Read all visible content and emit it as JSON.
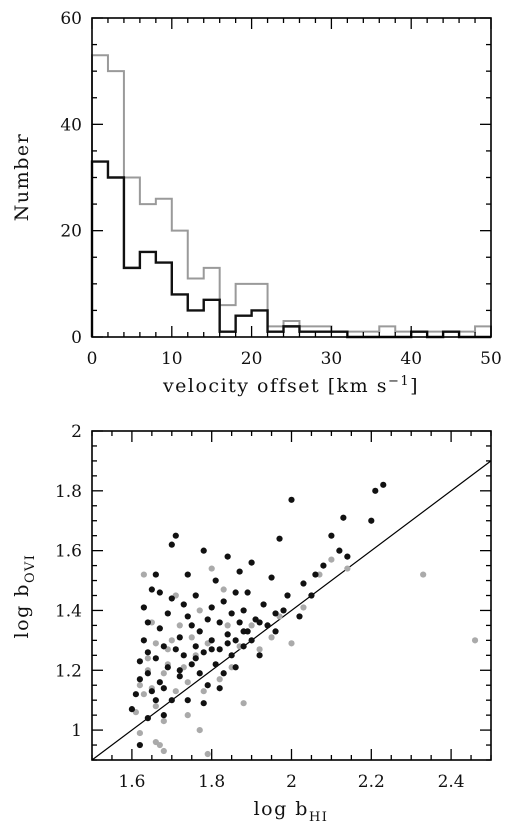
{
  "chart_data": [
    {
      "type": "histogram",
      "xlabel": "velocity offset [km s",
      "xlabel_sup": "−1",
      "xlabel_close": "]",
      "ylabel": "Number",
      "xlim": [
        0,
        50
      ],
      "ylim": [
        0,
        60
      ],
      "xticks": [
        0,
        10,
        20,
        30,
        40,
        50
      ],
      "yticks": [
        0,
        20,
        40,
        60
      ],
      "grid": false,
      "bin_edges": [
        0,
        2,
        4,
        6,
        8,
        10,
        12,
        14,
        16,
        18,
        20,
        22,
        24,
        26,
        28,
        30,
        32,
        34,
        36,
        38,
        40,
        42,
        44,
        46,
        48,
        50
      ],
      "series": [
        {
          "color": "#9a9a9a",
          "counts": [
            53,
            50,
            30,
            25,
            26,
            20,
            11,
            13,
            6,
            10,
            10,
            2,
            3,
            2,
            2,
            1,
            1,
            1,
            2,
            1,
            1,
            1,
            1,
            1,
            2
          ]
        },
        {
          "color": "#111111",
          "counts": [
            33,
            30,
            13,
            16,
            14,
            8,
            5,
            7,
            1,
            4,
            5,
            1,
            2,
            1,
            1,
            1,
            0,
            0,
            0,
            0,
            1,
            0,
            1,
            0,
            0
          ]
        }
      ]
    },
    {
      "type": "scatter",
      "xlabel": "log  b",
      "xlabel_sub": "HI",
      "ylabel": "log  b",
      "ylabel_sub": "OVI",
      "xlim": [
        1.5,
        2.5
      ],
      "ylim": [
        0.9,
        2.0
      ],
      "xticks": [
        1.6,
        1.8,
        2,
        2.2,
        2.4
      ],
      "xtick_labels": [
        "1.6",
        "1.8",
        "2",
        "2.2",
        "2.4"
      ],
      "yticks": [
        1,
        1.2,
        1.4,
        1.6,
        1.8,
        2
      ],
      "ytick_labels": [
        "1",
        "1.2",
        "1.4",
        "1.6",
        "1.8",
        "2"
      ],
      "grid": false,
      "line": {
        "x": [
          1.5,
          2.5
        ],
        "y": [
          0.9,
          1.9
        ]
      },
      "series": [
        {
          "color": "#aaaaaa",
          "points": [
            [
              1.61,
              1.06
            ],
            [
              1.62,
              0.99
            ],
            [
              1.63,
              1.12
            ],
            [
              1.64,
              1.2
            ],
            [
              1.64,
              1.24
            ],
            [
              1.65,
              1.14
            ],
            [
              1.66,
              1.08
            ],
            [
              1.66,
              0.96
            ],
            [
              1.67,
              0.95
            ],
            [
              1.68,
              1.03
            ],
            [
              1.68,
              1.19
            ],
            [
              1.69,
              1.27
            ],
            [
              1.7,
              1.3
            ],
            [
              1.71,
              1.13
            ],
            [
              1.72,
              1.35
            ],
            [
              1.73,
              1.21
            ],
            [
              1.74,
              1.16
            ],
            [
              1.75,
              1.31
            ],
            [
              1.76,
              1.25
            ],
            [
              1.77,
              1.0
            ],
            [
              1.78,
              1.13
            ],
            [
              1.79,
              1.29
            ],
            [
              1.8,
              1.54
            ],
            [
              1.82,
              1.17
            ],
            [
              1.84,
              1.35
            ],
            [
              1.85,
              1.21
            ],
            [
              1.87,
              1.28
            ],
            [
              1.88,
              1.09
            ],
            [
              1.9,
              1.35
            ],
            [
              1.92,
              1.27
            ],
            [
              1.95,
              1.31
            ],
            [
              1.97,
              1.38
            ],
            [
              2.0,
              1.29
            ],
            [
              2.03,
              1.41
            ],
            [
              2.07,
              1.52
            ],
            [
              2.1,
              1.57
            ],
            [
              2.14,
              1.54
            ],
            [
              2.33,
              1.52
            ],
            [
              2.46,
              1.3
            ],
            [
              1.63,
              1.52
            ],
            [
              1.66,
              1.29
            ],
            [
              1.69,
              1.22
            ],
            [
              1.71,
              1.45
            ],
            [
              1.74,
              1.05
            ],
            [
              1.77,
              1.4
            ],
            [
              1.62,
              1.15
            ],
            [
              1.65,
              1.36
            ],
            [
              1.68,
              0.93
            ],
            [
              1.79,
              0.92
            ],
            [
              1.83,
              1.47
            ]
          ]
        },
        {
          "color": "#111111",
          "points": [
            [
              1.6,
              1.07
            ],
            [
              1.61,
              1.12
            ],
            [
              1.62,
              1.17
            ],
            [
              1.62,
              1.23
            ],
            [
              1.63,
              1.3
            ],
            [
              1.63,
              1.41
            ],
            [
              1.64,
              1.19
            ],
            [
              1.64,
              1.26
            ],
            [
              1.65,
              1.13
            ],
            [
              1.65,
              1.47
            ],
            [
              1.66,
              1.24
            ],
            [
              1.66,
              1.52
            ],
            [
              1.67,
              1.16
            ],
            [
              1.67,
              1.34
            ],
            [
              1.68,
              1.05
            ],
            [
              1.68,
              1.28
            ],
            [
              1.69,
              1.39
            ],
            [
              1.69,
              1.21
            ],
            [
              1.7,
              1.62
            ],
            [
              1.7,
              1.44
            ],
            [
              1.71,
              1.27
            ],
            [
              1.71,
              1.65
            ],
            [
              1.72,
              1.31
            ],
            [
              1.72,
              1.18
            ],
            [
              1.73,
              1.42
            ],
            [
              1.73,
              1.25
            ],
            [
              1.74,
              1.52
            ],
            [
              1.74,
              1.1
            ],
            [
              1.75,
              1.35
            ],
            [
              1.75,
              1.22
            ],
            [
              1.76,
              1.28
            ],
            [
              1.76,
              1.45
            ],
            [
              1.77,
              1.19
            ],
            [
              1.77,
              1.33
            ],
            [
              1.78,
              1.6
            ],
            [
              1.78,
              1.26
            ],
            [
              1.79,
              1.37
            ],
            [
              1.79,
              1.15
            ],
            [
              1.8,
              1.3
            ],
            [
              1.8,
              1.41
            ],
            [
              1.81,
              1.22
            ],
            [
              1.81,
              1.5
            ],
            [
              1.82,
              1.27
            ],
            [
              1.82,
              1.36
            ],
            [
              1.83,
              1.19
            ],
            [
              1.83,
              1.43
            ],
            [
              1.84,
              1.32
            ],
            [
              1.84,
              1.58
            ],
            [
              1.85,
              1.25
            ],
            [
              1.85,
              1.39
            ],
            [
              1.86,
              1.3
            ],
            [
              1.86,
              1.21
            ],
            [
              1.87,
              1.36
            ],
            [
              1.87,
              1.53
            ],
            [
              1.88,
              1.28
            ],
            [
              1.88,
              1.4
            ],
            [
              1.89,
              1.33
            ],
            [
              1.89,
              1.46
            ],
            [
              1.9,
              1.3
            ],
            [
              1.9,
              1.56
            ],
            [
              1.91,
              1.37
            ],
            [
              1.92,
              1.25
            ],
            [
              1.93,
              1.42
            ],
            [
              1.94,
              1.35
            ],
            [
              1.95,
              1.51
            ],
            [
              1.96,
              1.33
            ],
            [
              1.97,
              1.64
            ],
            [
              1.98,
              1.4
            ],
            [
              1.99,
              1.45
            ],
            [
              2.0,
              1.77
            ],
            [
              2.02,
              1.38
            ],
            [
              2.03,
              1.49
            ],
            [
              2.05,
              1.45
            ],
            [
              2.06,
              1.52
            ],
            [
              2.08,
              1.55
            ],
            [
              2.1,
              1.65
            ],
            [
              2.12,
              1.6
            ],
            [
              2.13,
              1.71
            ],
            [
              2.14,
              1.58
            ],
            [
              2.2,
              1.7
            ],
            [
              2.21,
              1.8
            ],
            [
              2.23,
              1.82
            ],
            [
              1.62,
              0.95
            ],
            [
              1.64,
              1.04
            ],
            [
              1.66,
              1.1
            ],
            [
              1.68,
              1.14
            ],
            [
              1.72,
              1.2
            ],
            [
              1.76,
              1.24
            ],
            [
              1.8,
              1.27
            ],
            [
              1.84,
              1.29
            ],
            [
              1.88,
              1.33
            ],
            [
              1.92,
              1.36
            ],
            [
              1.96,
              1.39
            ],
            [
              1.64,
              1.36
            ],
            [
              1.67,
              1.46
            ],
            [
              1.7,
              1.1
            ],
            [
              1.74,
              1.38
            ],
            [
              1.78,
              1.09
            ],
            [
              1.82,
              1.14
            ],
            [
              1.86,
              1.46
            ]
          ]
        }
      ]
    }
  ]
}
